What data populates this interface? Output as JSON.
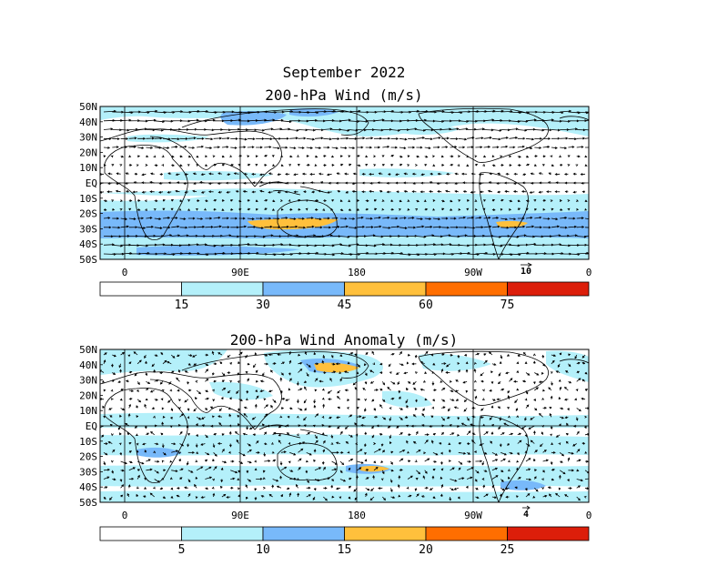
{
  "figure": {
    "title_line1": "September 2022"
  },
  "panels": [
    {
      "id": "wind",
      "title": "200-hPa Wind (m/s)",
      "lat_labels": [
        "50N",
        "40N",
        "30N",
        "20N",
        "10N",
        "EQ",
        "10S",
        "20S",
        "30S",
        "40S",
        "50S"
      ],
      "lon_labels": [
        "0",
        "90E",
        "180",
        "90W",
        "0"
      ],
      "ref_vector_label": "10",
      "colorbar": {
        "labels": [
          "15",
          "30",
          "45",
          "60",
          "75"
        ],
        "colors": [
          "#ffffff",
          "#b4f0fa",
          "#78b9fa",
          "#ffc03c",
          "#ff6e00",
          "#dc1e0a"
        ]
      }
    },
    {
      "id": "anomaly",
      "title": "200-hPa Wind Anomaly (m/s)",
      "lat_labels": [
        "50N",
        "40N",
        "30N",
        "20N",
        "10N",
        "EQ",
        "10S",
        "20S",
        "30S",
        "40S",
        "50S"
      ],
      "lon_labels": [
        "0",
        "90E",
        "180",
        "90W",
        "0"
      ],
      "ref_vector_label": "4",
      "colorbar": {
        "labels": [
          "5",
          "10",
          "15",
          "20",
          "25"
        ],
        "colors": [
          "#ffffff",
          "#b4f0fa",
          "#78b9fa",
          "#ffc03c",
          "#ff6e00",
          "#dc1e0a"
        ]
      }
    }
  ]
}
